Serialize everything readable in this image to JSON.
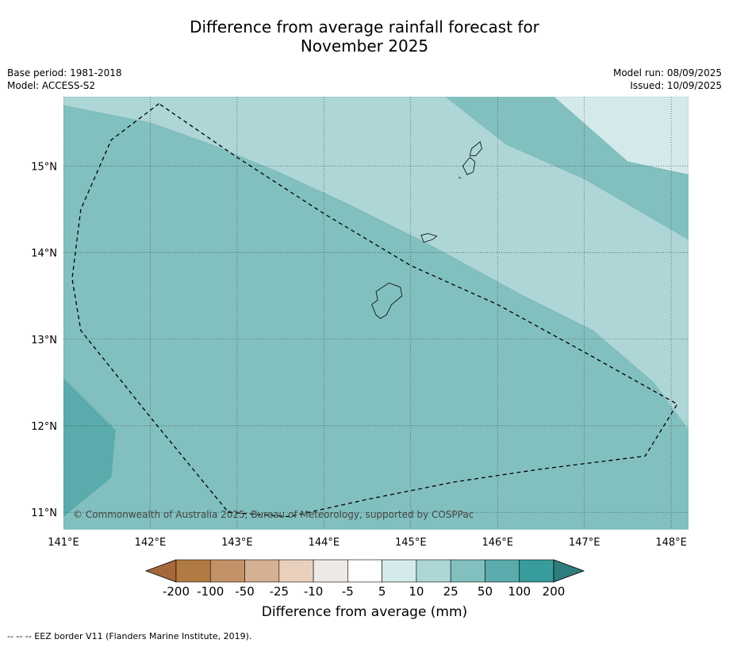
{
  "title_line1": "Difference from average rainfall forecast for",
  "title_line2": "November 2025",
  "meta_left": {
    "base_period": "Base period: 1981-2018",
    "model": "Model: ACCESS-S2"
  },
  "meta_right": {
    "model_run": "Model run: 08/09/2025",
    "issued": "Issued: 10/09/2025"
  },
  "map": {
    "lon_range": [
      141.0,
      148.2
    ],
    "lat_range": [
      10.8,
      15.8
    ],
    "lon_ticks": [
      "141°E",
      "142°E",
      "143°E",
      "144°E",
      "145°E",
      "146°E",
      "147°E",
      "148°E"
    ],
    "lat_ticks": [
      "15°N",
      "14°N",
      "13°N",
      "12°N",
      "11°N"
    ],
    "copyright": "© Commonwealth of Australia 2025, Bureau of Meteorology, supported by COSPPac",
    "eez_border": [
      [
        142.1,
        15.72
      ],
      [
        141.55,
        15.3
      ],
      [
        141.2,
        14.5
      ],
      [
        141.1,
        13.7
      ],
      [
        141.2,
        13.1
      ],
      [
        142.0,
        12.1
      ],
      [
        142.9,
        11.0
      ],
      [
        143.6,
        10.95
      ],
      [
        144.5,
        11.15
      ],
      [
        145.5,
        11.35
      ],
      [
        146.5,
        11.5
      ],
      [
        147.7,
        11.65
      ],
      [
        148.07,
        12.25
      ],
      [
        147.0,
        12.85
      ],
      [
        146.0,
        13.4
      ],
      [
        145.0,
        13.85
      ],
      [
        144.0,
        14.45
      ],
      [
        143.0,
        15.1
      ],
      [
        142.1,
        15.72
      ]
    ],
    "islands": [
      [
        [
          144.6,
          13.55
        ],
        [
          144.75,
          13.65
        ],
        [
          144.88,
          13.6
        ],
        [
          144.9,
          13.5
        ],
        [
          144.78,
          13.4
        ],
        [
          144.72,
          13.28
        ],
        [
          144.65,
          13.24
        ],
        [
          144.6,
          13.28
        ],
        [
          144.55,
          13.4
        ],
        [
          144.62,
          13.45
        ]
      ],
      [
        [
          145.12,
          14.2
        ],
        [
          145.2,
          14.22
        ],
        [
          145.3,
          14.19
        ],
        [
          145.25,
          14.15
        ],
        [
          145.15,
          14.12
        ]
      ],
      [
        [
          145.6,
          15.0
        ],
        [
          145.68,
          15.1
        ],
        [
          145.74,
          15.05
        ],
        [
          145.72,
          14.93
        ],
        [
          145.65,
          14.9
        ]
      ],
      [
        [
          145.7,
          15.2
        ],
        [
          145.8,
          15.28
        ],
        [
          145.82,
          15.2
        ],
        [
          145.75,
          15.12
        ],
        [
          145.68,
          15.12
        ]
      ],
      [
        [
          145.55,
          14.87
        ],
        [
          145.58,
          14.86
        ]
      ]
    ],
    "regions": [
      {
        "color": "#5aabab",
        "points": [
          [
            141.0,
            12.55
          ],
          [
            141.5,
            12.05
          ],
          [
            141.6,
            11.95
          ],
          [
            141.55,
            11.4
          ],
          [
            141.0,
            10.95
          ]
        ]
      },
      {
        "color": "#aed6d6",
        "points": [
          [
            141.0,
            15.8
          ],
          [
            145.4,
            15.8
          ],
          [
            146.1,
            15.25
          ],
          [
            147.0,
            14.85
          ],
          [
            148.2,
            14.15
          ],
          [
            148.2,
            11.95
          ],
          [
            147.8,
            12.5
          ],
          [
            147.1,
            13.1
          ],
          [
            146.3,
            13.5
          ],
          [
            145.2,
            14.1
          ],
          [
            144.3,
            14.55
          ],
          [
            143.5,
            14.92
          ],
          [
            142.7,
            15.25
          ],
          [
            142.0,
            15.5
          ],
          [
            141.0,
            15.7
          ]
        ]
      },
      {
        "color": "#d4eaea",
        "points": [
          [
            146.65,
            15.8
          ],
          [
            147.5,
            15.05
          ],
          [
            148.2,
            14.9
          ],
          [
            148.2,
            14.9
          ],
          [
            148.2,
            15.8
          ]
        ]
      }
    ]
  },
  "colorbar": {
    "labels": [
      "-200",
      "-100",
      "-50",
      "-25",
      "-10",
      "-5",
      "5",
      "10",
      "25",
      "50",
      "100",
      "200"
    ],
    "colors": [
      "#a6683a",
      "#b07a42",
      "#c49268",
      "#d5b092",
      "#e8d0bd",
      "#efe9e6",
      "#ffffff",
      "#d5eaea",
      "#add6d6",
      "#82c0bf",
      "#5aabab",
      "#379c9b",
      "#2e7c7b"
    ],
    "title": "Difference from average (mm)"
  },
  "footnote": "--  --  -- EEZ border V11 (Flanders Marine Institute, 2019)."
}
